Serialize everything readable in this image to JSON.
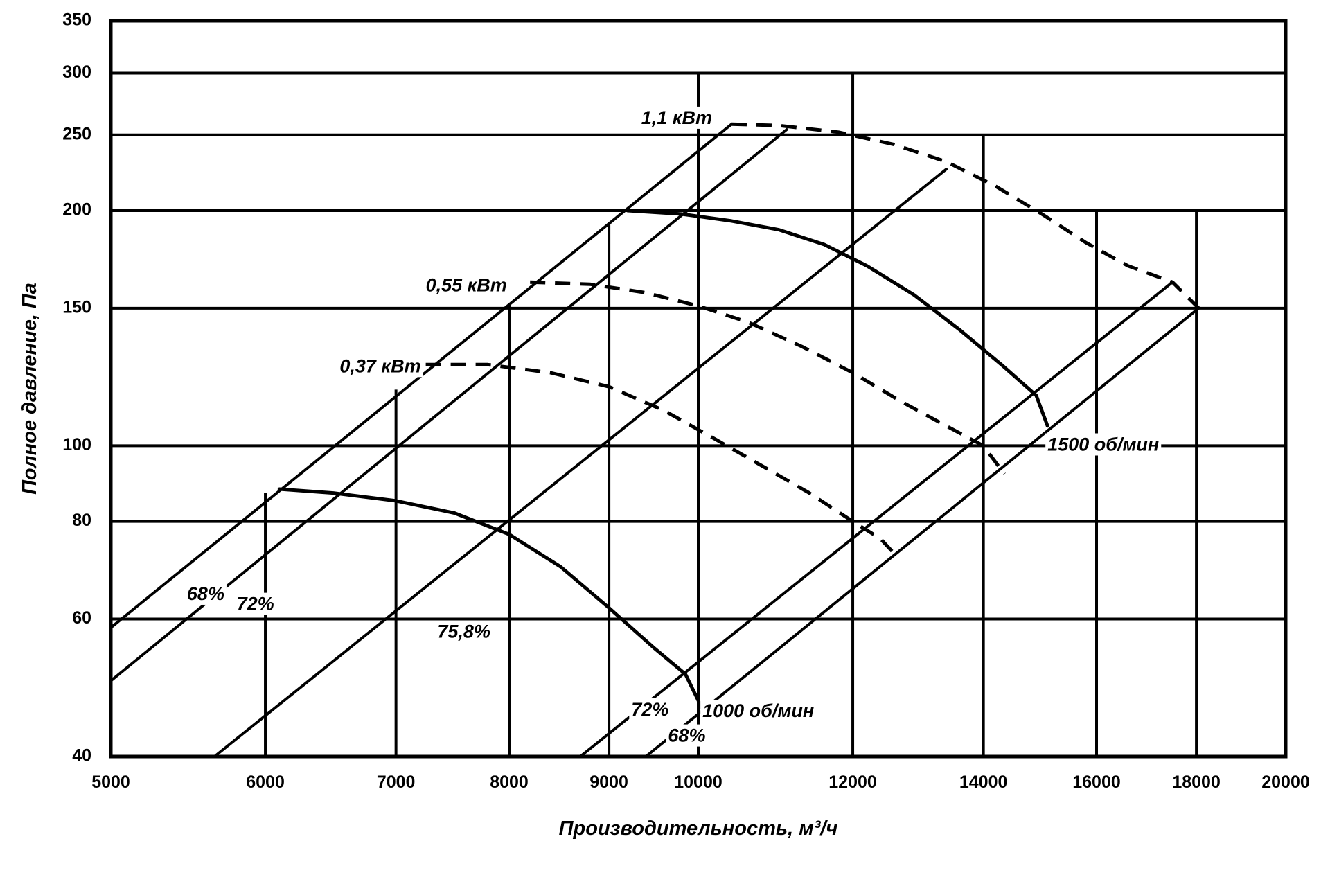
{
  "chart_data": {
    "type": "line",
    "xscale": "log",
    "yscale": "log",
    "xlim": [
      5000,
      20000
    ],
    "ylim": [
      40,
      350
    ],
    "xlabel": "Производительность, м³/ч",
    "ylabel": "Полное давление, Па",
    "grid": true,
    "legend": "none",
    "x_ticks": [
      5000,
      6000,
      7000,
      8000,
      9000,
      10000,
      12000,
      14000,
      16000,
      18000,
      20000
    ],
    "x_tick_labels": [
      "5000",
      "6000",
      "7000",
      "8000",
      "9000",
      "10000",
      "12000",
      "14000",
      "16000",
      "18000",
      "20000"
    ],
    "y_ticks": [
      40,
      60,
      80,
      100,
      150,
      200,
      250,
      300,
      350
    ],
    "y_tick_labels": [
      "40",
      "60",
      "80",
      "100",
      "150",
      "200",
      "250",
      "300",
      "350"
    ],
    "vertical_grid_ranges": [
      {
        "x": 6000,
        "y": [
          40,
          87
        ]
      },
      {
        "x": 7000,
        "y": [
          40,
          118
        ]
      },
      {
        "x": 8000,
        "y": [
          40,
          152
        ]
      },
      {
        "x": 9000,
        "y": [
          40,
          193
        ]
      },
      {
        "x": 10000,
        "y": [
          40,
          300
        ]
      },
      {
        "x": 12000,
        "y": [
          40,
          300
        ]
      },
      {
        "x": 14000,
        "y": [
          40,
          250
        ]
      },
      {
        "x": 16000,
        "y": [
          40,
          200
        ]
      },
      {
        "x": 18000,
        "y": [
          40,
          200
        ]
      }
    ],
    "series": [
      {
        "name": "1500 об/мин",
        "style": "solid",
        "width": 5,
        "x": [
          9200,
          9800,
          10400,
          11000,
          11600,
          12200,
          12900,
          13600,
          14300,
          14900,
          15100
        ],
        "y": [
          200,
          198,
          194,
          189,
          181,
          170,
          156,
          141,
          127,
          116,
          106
        ]
      },
      {
        "name": "1000 об/мин",
        "style": "solid",
        "width": 5,
        "x": [
          6100,
          6500,
          7000,
          7500,
          8000,
          8500,
          9000,
          9500,
          9850,
          10050
        ],
        "y": [
          88,
          87,
          85,
          82,
          77,
          70,
          62,
          55,
          51,
          46
        ]
      },
      {
        "name": "1,1 кВт",
        "style": "dashed",
        "width": 5,
        "x": [
          10400,
          11000,
          11800,
          12600,
          13400,
          14200,
          15000,
          15800,
          16600,
          17500,
          18050
        ],
        "y": [
          258,
          257,
          252,
          243,
          231,
          215,
          198,
          182,
          170,
          162,
          150
        ]
      },
      {
        "name": "0,55 кВт",
        "style": "dashed",
        "width": 5,
        "x": [
          8200,
          8800,
          9400,
          10000,
          10600,
          11300,
          12000,
          12700,
          13400,
          14000,
          14350
        ],
        "y": [
          162,
          161,
          157,
          151,
          144,
          134,
          124,
          114,
          106,
          100,
          92
        ]
      },
      {
        "name": "0,37 кВт",
        "style": "dashed",
        "width": 5,
        "x": [
          7250,
          7800,
          8400,
          9000,
          9600,
          10200,
          10800,
          11400,
          12000,
          12400,
          12650
        ],
        "y": [
          127,
          127,
          124,
          119,
          111,
          102,
          94,
          87,
          80,
          76,
          72
        ]
      },
      {
        "name": "68%",
        "style": "solid",
        "width": 4,
        "x": [
          5000,
          10400
        ],
        "y": [
          58.5,
          258
        ]
      },
      {
        "name": "72%",
        "style": "solid",
        "width": 4,
        "x": [
          5000,
          11100
        ],
        "y": [
          50,
          254
        ]
      },
      {
        "name": "75,8%",
        "style": "solid",
        "width": 4,
        "x": [
          5650,
          13400
        ],
        "y": [
          40,
          226
        ]
      },
      {
        "name": "72%",
        "style": "solid",
        "width": 4,
        "x": [
          8700,
          17500
        ],
        "y": [
          40,
          162
        ]
      },
      {
        "name": "68%",
        "style": "solid",
        "width": 4,
        "x": [
          9400,
          18050
        ],
        "y": [
          40,
          150
        ]
      }
    ],
    "annotations": [
      {
        "text": "1,1 кВт",
        "x": 9350,
        "y": 262
      },
      {
        "text": "0,55 кВт",
        "x": 7250,
        "y": 160
      },
      {
        "text": "0,37 кВт",
        "x": 6550,
        "y": 126
      },
      {
        "text": "1500 об/мин",
        "x": 15100,
        "y": 100
      },
      {
        "text": "1000 об/мин",
        "x": 10050,
        "y": 45.6
      },
      {
        "text": "68%",
        "x": 5470,
        "y": 64.4
      },
      {
        "text": "72%",
        "x": 5800,
        "y": 62.5
      },
      {
        "text": "75,8%",
        "x": 7350,
        "y": 57.6
      },
      {
        "text": "72%",
        "x": 9240,
        "y": 45.8
      },
      {
        "text": "68%",
        "x": 9650,
        "y": 42.4
      }
    ]
  }
}
